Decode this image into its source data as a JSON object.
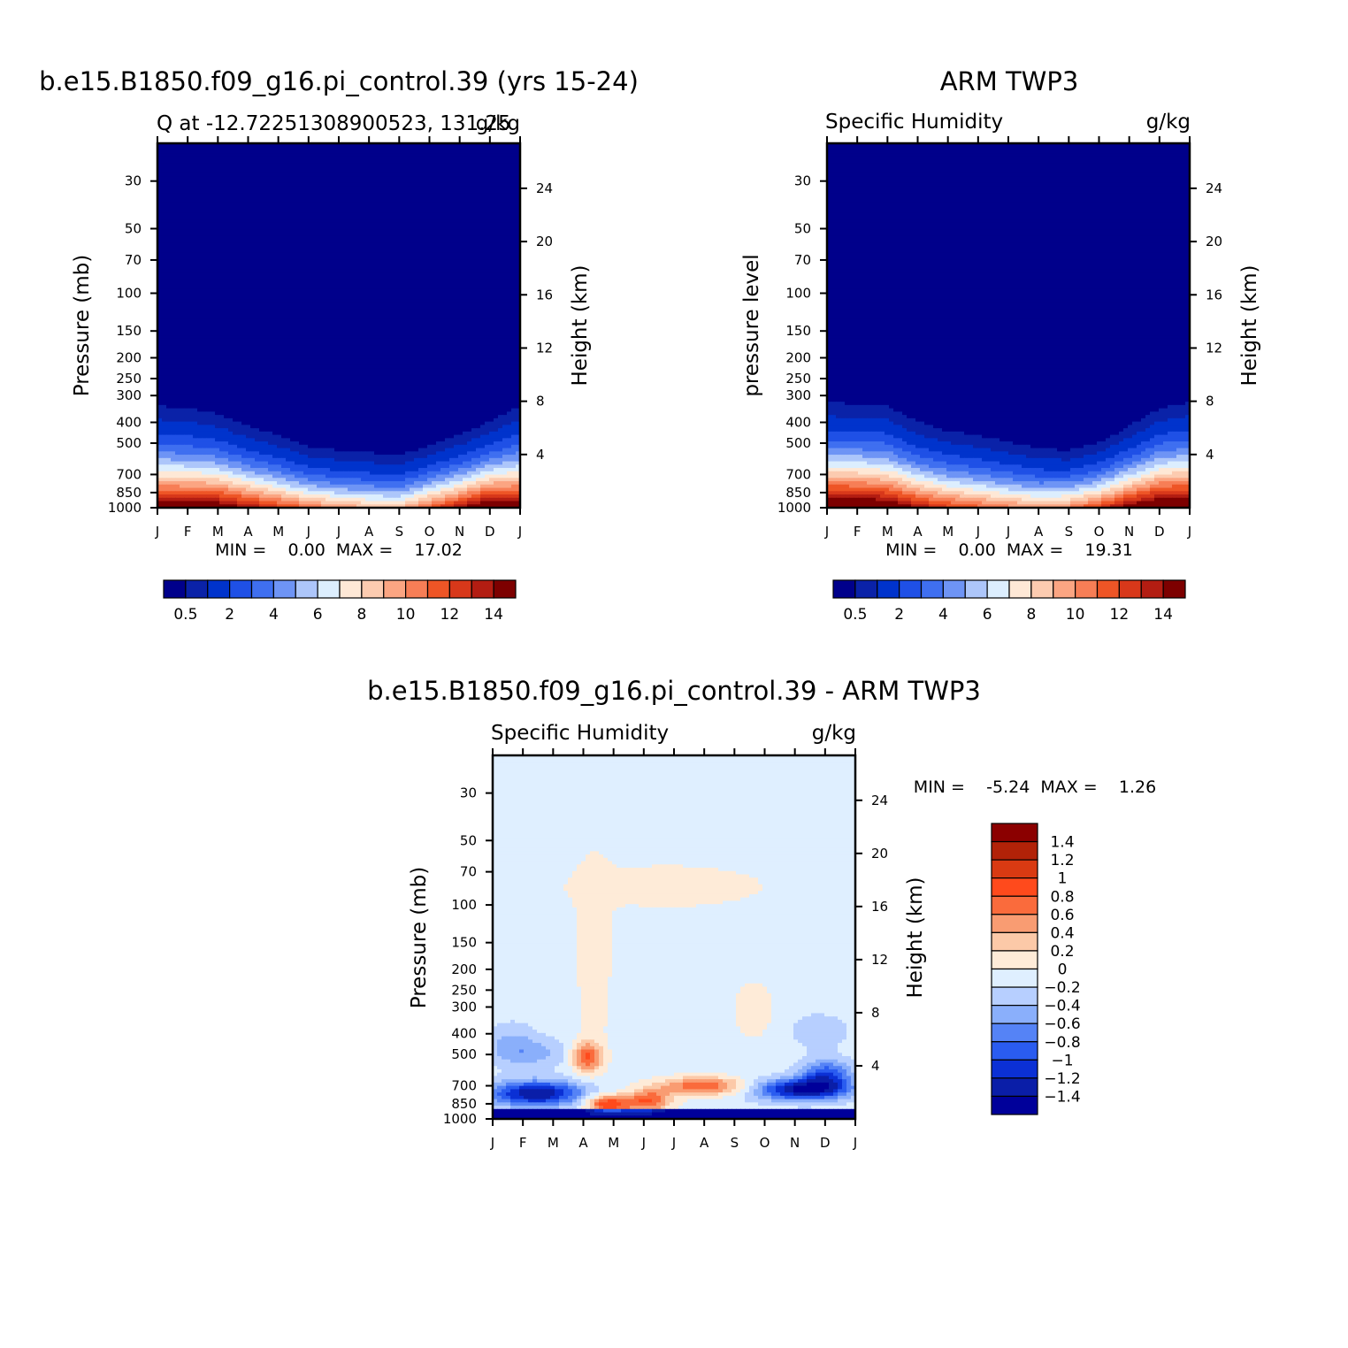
{
  "chart_data": [
    {
      "type": "heatmap",
      "title": "b.e15.B1850.f09_g16.pi_control.39 (yrs 15-24)",
      "left_string": "Q at -12.72251308900523, 131.25",
      "right_string": "g/kg",
      "ylabel": "Pressure (mb)",
      "ylabel_right": "Height (km)",
      "x": [
        "J",
        "F",
        "M",
        "A",
        "M",
        "J",
        "J",
        "A",
        "S",
        "O",
        "N",
        "D",
        "J"
      ],
      "pressure_ticks": [
        "30",
        "50",
        "70",
        "100",
        "150",
        "200",
        "250",
        "300",
        "400",
        "500",
        "700",
        "850",
        "1000"
      ],
      "height_ticks": [
        "24",
        "20",
        "16",
        "12",
        "8",
        "4"
      ],
      "min_max": "MIN =    0.00  MAX =    17.02",
      "colorbar_labels": [
        "0.5",
        "2",
        "4",
        "6",
        "8",
        "10",
        "12",
        "14"
      ],
      "contour_tops_mb": [
        300,
        310,
        330,
        380,
        420,
        480,
        500,
        510,
        530,
        470,
        420,
        360,
        300
      ],
      "surface_max_gkg": [
        15.5,
        15.6,
        15.5,
        14.0,
        12.5,
        11.0,
        10.0,
        9.2,
        9.0,
        11.5,
        14.0,
        16.5,
        15.5
      ]
    },
    {
      "type": "heatmap",
      "title": "ARM TWP3",
      "left_string": "Specific Humidity",
      "right_string": "g/kg",
      "ylabel": "pressure level",
      "ylabel_right": "Height (km)",
      "x": [
        "J",
        "F",
        "M",
        "A",
        "M",
        "J",
        "J",
        "A",
        "S",
        "O",
        "N",
        "D",
        "J"
      ],
      "pressure_ticks": [
        "30",
        "50",
        "70",
        "100",
        "150",
        "200",
        "250",
        "300",
        "400",
        "500",
        "700",
        "850",
        "1000"
      ],
      "height_ticks": [
        "24",
        "20",
        "16",
        "12",
        "8",
        "4"
      ],
      "min_max": "MIN =    0.00  MAX =    19.31",
      "colorbar_labels": [
        "0.5",
        "2",
        "4",
        "6",
        "8",
        "10",
        "12",
        "14"
      ],
      "contour_tops_mb": [
        290,
        295,
        300,
        360,
        400,
        420,
        450,
        490,
        500,
        460,
        380,
        310,
        290
      ],
      "surface_max_gkg": [
        17.0,
        16.8,
        16.0,
        14.0,
        12.5,
        11.5,
        10.5,
        10.0,
        10.5,
        12.5,
        15.0,
        17.0,
        17.0
      ]
    },
    {
      "type": "heatmap",
      "title": "b.e15.B1850.f09_g16.pi_control.39 - ARM TWP3",
      "left_string": "Specific Humidity",
      "right_string": "g/kg",
      "ylabel": "Pressure (mb)",
      "ylabel_right": "Height (km)",
      "x": [
        "J",
        "F",
        "M",
        "A",
        "M",
        "J",
        "J",
        "A",
        "S",
        "O",
        "N",
        "D",
        "J"
      ],
      "pressure_ticks": [
        "30",
        "50",
        "70",
        "100",
        "150",
        "200",
        "250",
        "300",
        "400",
        "500",
        "700",
        "850",
        "1000"
      ],
      "height_ticks": [
        "24",
        "20",
        "16",
        "12",
        "8",
        "4"
      ],
      "min_max": "MIN =    -5.24  MAX =    1.26",
      "colorbar_labels": [
        "1.4",
        "1.2",
        "1",
        "0.8",
        "0.6",
        "0.4",
        "0.2",
        "0",
        "−0.2",
        "−0.4",
        "−0.6",
        "−0.8",
        "−1",
        "−1.2",
        "−1.4"
      ]
    }
  ],
  "colors": {
    "q_levels": [
      "#00008b",
      "#0a22a8",
      "#0033cc",
      "#1f50e6",
      "#3f6ff0",
      "#6e94f5",
      "#adc6fa",
      "#dceefe",
      "#fee8d6",
      "#fccbb0",
      "#fba582",
      "#f77e56",
      "#ee5526",
      "#d8381a",
      "#b31d12",
      "#7d0000"
    ],
    "diff_levels_top_to_bottom": [
      "#8b0000",
      "#b22208",
      "#d93a12",
      "#ff4a1c",
      "#fa6b3c",
      "#f99c72",
      "#fcc9a8",
      "#feebd8",
      "#dfefff",
      "#b7cfff",
      "#8aaffb",
      "#5583f6",
      "#2a5cf0",
      "#0b30d5",
      "#0a1ea8",
      "#00009a"
    ]
  }
}
